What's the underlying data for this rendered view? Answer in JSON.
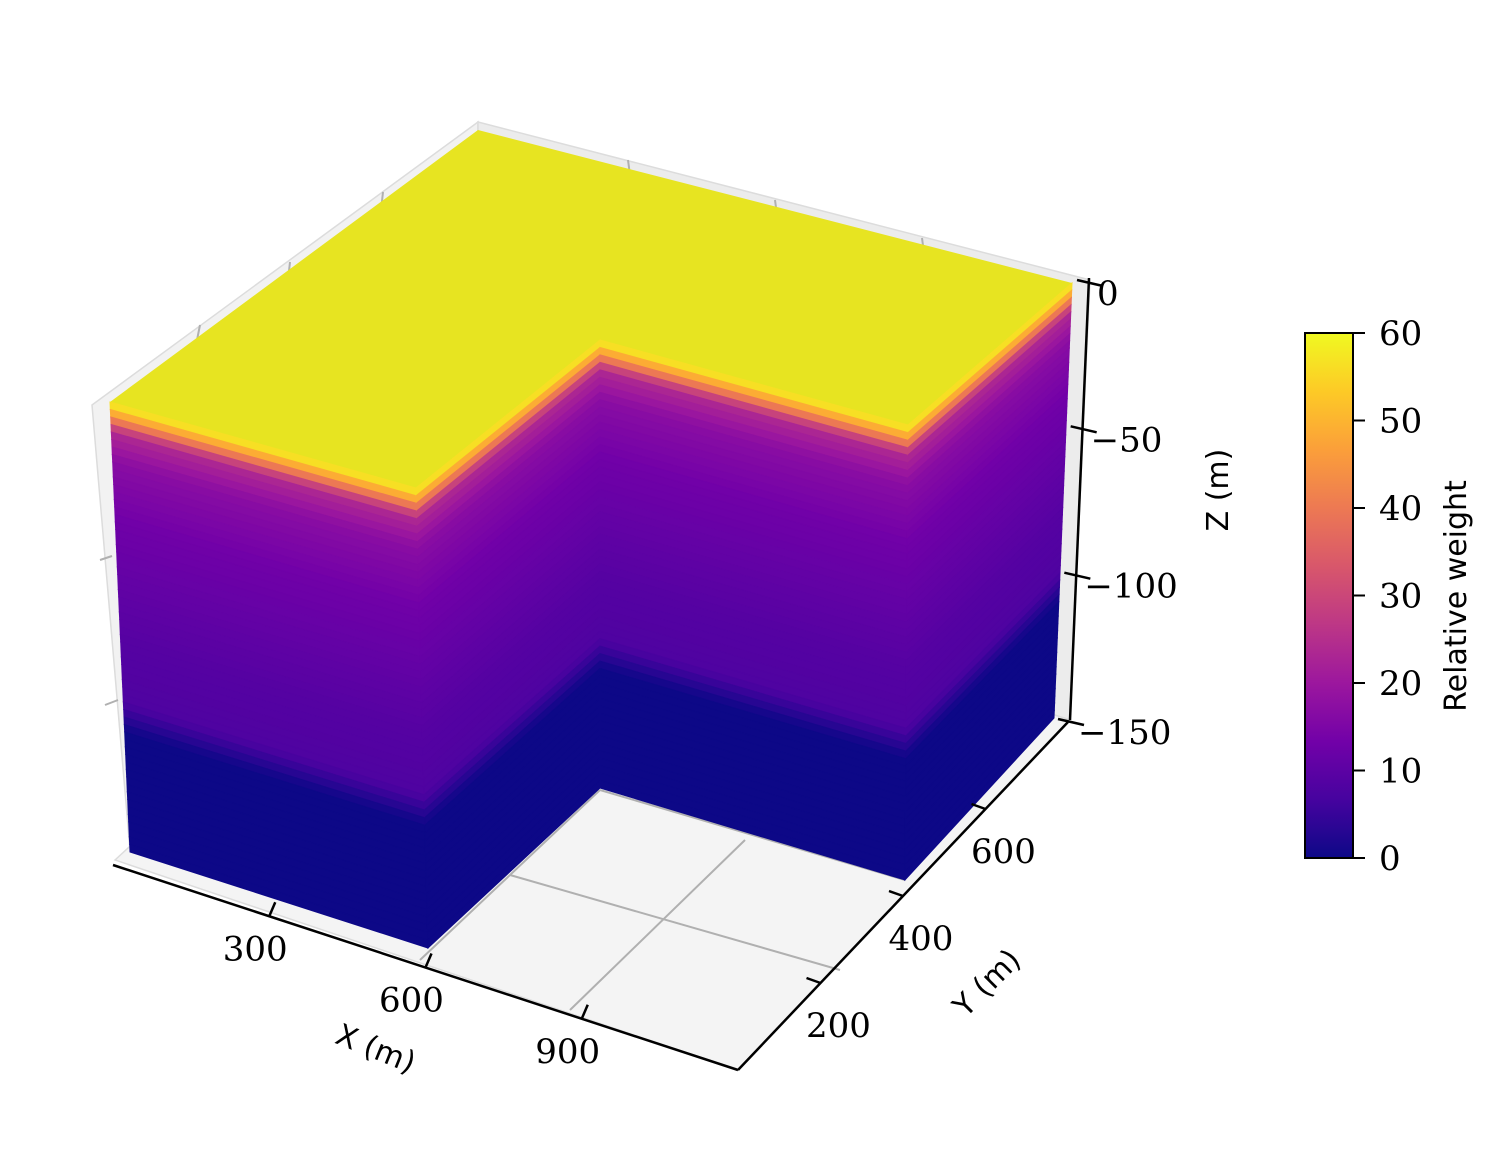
{
  "chart_data": {
    "type": "3d-voxel",
    "xlabel": "X (m)",
    "ylabel": "Y (m)",
    "zlabel": "Z (m)",
    "x_ticks": [
      300,
      600,
      900
    ],
    "x_tick_labels": [
      "300",
      "600",
      "900"
    ],
    "y_ticks": [
      200,
      400,
      600
    ],
    "y_tick_labels": [
      "200",
      "400",
      "600"
    ],
    "z_ticks": [
      0,
      -50,
      -100,
      -150
    ],
    "z_tick_labels": [
      "0",
      "−50",
      "−100",
      "−150"
    ],
    "xlim": [
      0,
      1200
    ],
    "ylim": [
      0,
      800
    ],
    "zlim": [
      -160,
      0
    ],
    "grid": true,
    "colormap": "plasma",
    "geometry": {
      "shape": "L-shaped block (region x > 600, y < 400 removed)",
      "z_top": 0,
      "z_bottom": -150
    },
    "depth_profile": {
      "description": "relative weight versus depth",
      "z": [
        0,
        -5,
        -10,
        -20,
        -30,
        -40,
        -50,
        -60,
        -70,
        -80,
        -90,
        -100,
        -110,
        -120,
        -130,
        -140,
        -150
      ],
      "weight": [
        60,
        45,
        24,
        17,
        15,
        13,
        12,
        11,
        10,
        9,
        8.5,
        8,
        0,
        0,
        0,
        0,
        0
      ]
    },
    "colorbar": {
      "label": "Relative weight",
      "range": [
        0,
        60
      ],
      "ticks": [
        0,
        10,
        20,
        30,
        40,
        50,
        60
      ],
      "tick_labels": [
        "0",
        "10",
        "20",
        "30",
        "40",
        "50",
        "60"
      ],
      "colors": [
        "#0d0887",
        "#46039f",
        "#7201a8",
        "#9c179e",
        "#bd3786",
        "#d8576b",
        "#ed7953",
        "#fb9f3a",
        "#fdca26",
        "#f0f921"
      ]
    }
  }
}
